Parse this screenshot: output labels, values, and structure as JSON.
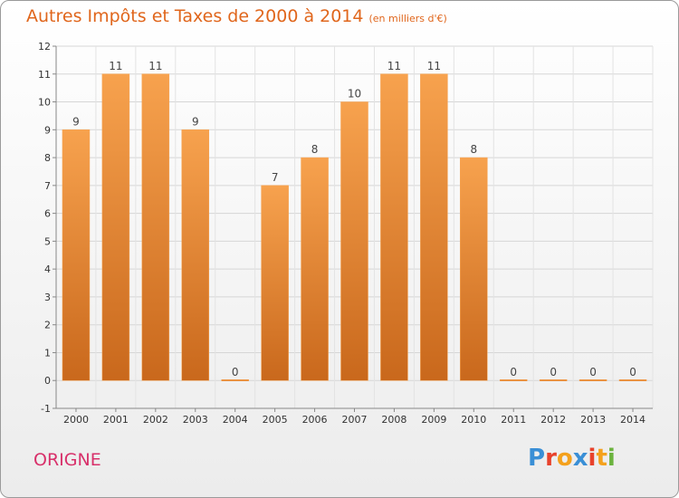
{
  "title": "Autres Impôts et Taxes de 2000 à 2014",
  "subtitle": "(en milliers d'€)",
  "commune": "ORIGNE",
  "logo": {
    "text": "Proxiti",
    "colors": [
      "#3a8fd6",
      "#e8422c",
      "#f4a11d",
      "#3a8fd6",
      "#e8422c",
      "#f4a11d",
      "#6cb33f"
    ]
  },
  "colors": {
    "bar_light": "#f7a24e",
    "bar_dark": "#c9681c",
    "accent": "#e0661c"
  },
  "chart_data": {
    "type": "bar",
    "categories": [
      "2000",
      "2001",
      "2002",
      "2003",
      "2004",
      "2005",
      "2006",
      "2007",
      "2008",
      "2009",
      "2010",
      "2011",
      "2012",
      "2013",
      "2014"
    ],
    "values": [
      9,
      11,
      11,
      9,
      0,
      7,
      8,
      10,
      11,
      11,
      8,
      0,
      0,
      0,
      0
    ],
    "data_labels": [
      "9",
      "11",
      "11",
      "9",
      "0",
      "7",
      "8",
      "10",
      "11",
      "11",
      "8",
      "0",
      "0",
      "0",
      "0"
    ],
    "title": "Autres Impôts et Taxes de 2000 à 2014",
    "ylim": [
      -1,
      12
    ],
    "yticks": [
      -1,
      0,
      1,
      2,
      3,
      4,
      5,
      6,
      7,
      8,
      9,
      10,
      11,
      12
    ],
    "ytick_labels": [
      "-1",
      "0",
      "1",
      "2",
      "3",
      "4",
      "5",
      "6",
      "7",
      "8",
      "9",
      "10",
      "11",
      "12"
    ],
    "grid": true
  }
}
